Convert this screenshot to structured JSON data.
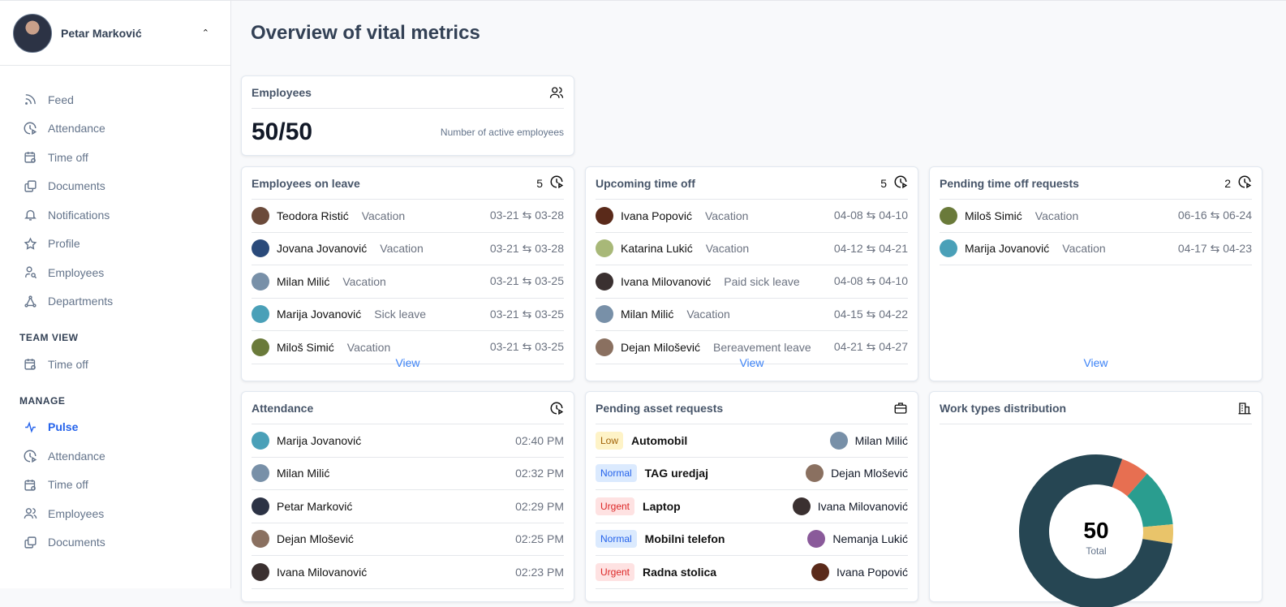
{
  "user": {
    "name": "Petar Marković"
  },
  "sidebar": {
    "items": [
      {
        "label": "Feed",
        "icon": "rss-icon"
      },
      {
        "label": "Attendance",
        "icon": "clock-icon"
      },
      {
        "label": "Time off",
        "icon": "calendar-icon"
      },
      {
        "label": "Documents",
        "icon": "documents-icon"
      },
      {
        "label": "Notifications",
        "icon": "bell-icon"
      },
      {
        "label": "Profile",
        "icon": "star-icon"
      },
      {
        "label": "Employees",
        "icon": "user-search-icon"
      },
      {
        "label": "Departments",
        "icon": "sitemap-icon"
      }
    ],
    "team_view": {
      "title": "TEAM VIEW",
      "items": [
        {
          "label": "Time off"
        }
      ]
    },
    "manage": {
      "title": "MANAGE",
      "items": [
        {
          "label": "Pulse",
          "active": true
        },
        {
          "label": "Attendance"
        },
        {
          "label": "Time off"
        },
        {
          "label": "Employees"
        },
        {
          "label": "Documents"
        }
      ]
    }
  },
  "page": {
    "title": "Overview of vital metrics"
  },
  "employees_card": {
    "title": "Employees",
    "value": "50/50",
    "caption": "Number of active employees"
  },
  "on_leave": {
    "title": "Employees on leave",
    "count": "5",
    "view": "View",
    "rows": [
      {
        "name": "Teodora Ristić",
        "type": "Vacation",
        "dates": "03-21 ⇆ 03-28",
        "color": "#6b4a3a"
      },
      {
        "name": "Jovana Jovanović",
        "type": "Vacation",
        "dates": "03-21 ⇆ 03-28",
        "color": "#2a4a7a"
      },
      {
        "name": "Milan Milić",
        "type": "Vacation",
        "dates": "03-21 ⇆ 03-25",
        "color": "#7890a8"
      },
      {
        "name": "Marija Jovanović",
        "type": "Sick leave",
        "dates": "03-21 ⇆ 03-25",
        "color": "#4aa0b8"
      },
      {
        "name": "Miloš Simić",
        "type": "Vacation",
        "dates": "03-21 ⇆ 03-25",
        "color": "#6a7a3a"
      }
    ]
  },
  "upcoming": {
    "title": "Upcoming time off",
    "count": "5",
    "view": "View",
    "rows": [
      {
        "name": "Ivana Popović",
        "type": "Vacation",
        "dates": "04-08 ⇆ 04-10",
        "color": "#5a2a1a"
      },
      {
        "name": "Katarina Lukić",
        "type": "Vacation",
        "dates": "04-12 ⇆ 04-21",
        "color": "#a8b878"
      },
      {
        "name": "Ivana Milovanović",
        "type": "Paid sick leave",
        "dates": "04-08 ⇆ 04-10",
        "color": "#3a3030"
      },
      {
        "name": "Milan Milić",
        "type": "Vacation",
        "dates": "04-15 ⇆ 04-22",
        "color": "#7890a8"
      },
      {
        "name": "Dejan Milošević",
        "type": "Bereavement leave",
        "dates": "04-21 ⇆ 04-27",
        "color": "#8a7060"
      }
    ]
  },
  "pending_time_off": {
    "title": "Pending time off requests",
    "count": "2",
    "view": "View",
    "rows": [
      {
        "name": "Miloš Simić",
        "type": "Vacation",
        "dates": "06-16 ⇆ 06-24",
        "color": "#6a7a3a"
      },
      {
        "name": "Marija Jovanović",
        "type": "Vacation",
        "dates": "04-17 ⇆ 04-23",
        "color": "#4aa0b8"
      }
    ]
  },
  "attendance": {
    "title": "Attendance",
    "rows": [
      {
        "name": "Marija Jovanović",
        "time": "02:40 PM",
        "color": "#4aa0b8"
      },
      {
        "name": "Milan Milić",
        "time": "02:32 PM",
        "color": "#7890a8"
      },
      {
        "name": "Petar Marković",
        "time": "02:29 PM",
        "color": "#2c3345"
      },
      {
        "name": "Dejan Mlošević",
        "time": "02:25 PM",
        "color": "#8a7060"
      },
      {
        "name": "Ivana Milovanović",
        "time": "02:23 PM",
        "color": "#3a3030"
      }
    ]
  },
  "assets": {
    "title": "Pending asset requests",
    "rows": [
      {
        "priority": "Low",
        "item": "Automobil",
        "name": "Milan Milić",
        "color": "#7890a8"
      },
      {
        "priority": "Normal",
        "item": "TAG uredjaj",
        "name": "Dejan Mlošević",
        "color": "#8a7060"
      },
      {
        "priority": "Urgent",
        "item": "Laptop",
        "name": "Ivana Milovanović",
        "color": "#3a3030"
      },
      {
        "priority": "Normal",
        "item": "Mobilni telefon",
        "name": "Nemanja Lukić",
        "color": "#8a5a9a"
      },
      {
        "priority": "Urgent",
        "item": "Radna stolica",
        "name": "Ivana Popović",
        "color": "#5a2a1a"
      }
    ]
  },
  "work_types": {
    "title": "Work types distribution",
    "total": "50",
    "total_label": "Total",
    "segments": [
      {
        "value": 3,
        "color": "#e76f51"
      },
      {
        "value": 6,
        "color": "#2a9d8f"
      },
      {
        "value": 2,
        "color": "#e9c46a"
      },
      {
        "value": 39,
        "color": "#264653"
      }
    ]
  }
}
